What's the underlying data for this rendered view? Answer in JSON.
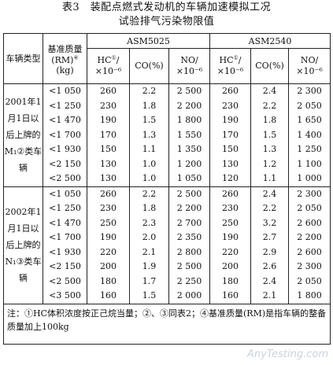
{
  "title_line1": "表3　装配点燃式发动机的车辆加速模拟工况",
  "title_line2": "试验排气污染物限值",
  "header": {
    "vehicle_type": "车辆类型",
    "ref_mass": "基准质量(RM)",
    "ref_mass_sup": "④",
    "ref_mass_unit": "(kg)",
    "asm5025": "ASM5025",
    "asm2540": "ASM2540",
    "hc_label": "HC",
    "hc_sup": "①",
    "hc_unit": "/×10⁻⁶",
    "co_label": "CO(%)",
    "no_label": "NO/×10⁻⁶"
  },
  "groups": [
    {
      "vehicle_type": "2001年1月1日以后上牌的M₁②类车辆",
      "mass": [
        "<1 050",
        "<1 250",
        "<1 470",
        "<1 700",
        "<1 930",
        "<2 150",
        "<2 500"
      ],
      "asm5025_hc": [
        "260",
        "230",
        "190",
        "170",
        "150",
        "130",
        "130"
      ],
      "asm5025_co": [
        "2.2",
        "1.8",
        "1.5",
        "1.3",
        "1.1",
        "1.0",
        "1.0"
      ],
      "asm5025_no": [
        "2 500",
        "2 200",
        "1 800",
        "1 550",
        "1 350",
        "1 200",
        "1 050"
      ],
      "asm2540_hc": [
        "260",
        "230",
        "190",
        "170",
        "150",
        "130",
        "120"
      ],
      "asm2540_co": [
        "2.4",
        "2.2",
        "1.8",
        "1.5",
        "1.3",
        "1.2",
        "1.1"
      ],
      "asm2540_no": [
        "2 300",
        "2 050",
        "1 650",
        "1 400",
        "1 250",
        "1 100",
        "1 000"
      ]
    },
    {
      "vehicle_type": "2002年1月1日以后上牌的N₁③类车辆",
      "mass": [
        "<1 050",
        "<1 250",
        "<1 470",
        "<1 700",
        "<1 930",
        "<2 150",
        "<2 500",
        "<3 500"
      ],
      "asm5025_hc": [
        "260",
        "230",
        "250",
        "190",
        "220",
        "200",
        "180",
        "160"
      ],
      "asm5025_co": [
        "2.2",
        "1.8",
        "2.3",
        "2.0",
        "2.1",
        "1.9",
        "1.7",
        "1.5"
      ],
      "asm5025_no": [
        "2 500",
        "2 200",
        "2 700",
        "2 350",
        "2 800",
        "2 500",
        "2 250",
        "2 000"
      ],
      "asm2540_hc": [
        "260",
        "230",
        "250",
        "190",
        "220",
        "200",
        "180",
        "160"
      ],
      "asm2540_co": [
        "2.4",
        "2.2",
        "3.2",
        "2.7",
        "2.9",
        "2.6",
        "2.4",
        "2.1"
      ],
      "asm2540_no": [
        "2 300",
        "2 050",
        "2 600",
        "2 200",
        "2 600",
        "2 300",
        "2 050",
        "1 800"
      ]
    }
  ],
  "note": "注：①HC体积浓度按正己烷当量；②、③同表2；④基准质量(RM)是指车辆的整备质量加上100kg",
  "watermark": "AnyTesting.com"
}
